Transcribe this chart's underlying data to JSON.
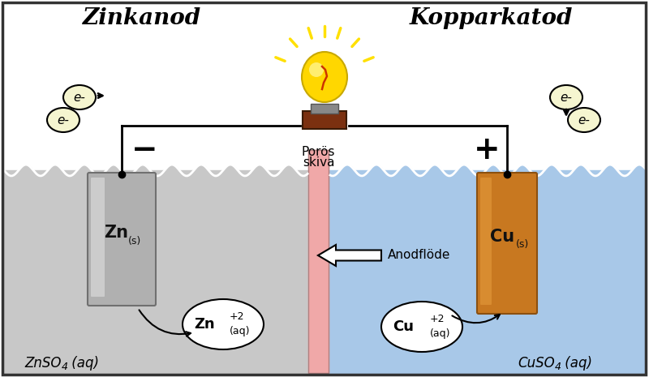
{
  "left_label": "Zinkanod",
  "right_label": "Kopparkatod",
  "left_solution_main": "ZnSO",
  "left_solution_sub": "4",
  "left_solution_end": " (aq)",
  "right_solution_main": "CuSO",
  "right_solution_sub": "4",
  "right_solution_end": " (aq)",
  "membrane_label_line1": "Porös",
  "membrane_label_line2": "skiva",
  "flow_label": "Anodflöde",
  "minus_sign": "−",
  "plus_sign": "+",
  "bg_color": "#ffffff",
  "left_bg": "#c8c8c8",
  "right_bg": "#a8c8e8",
  "membrane_color": "#f0a8a8",
  "left_electrode_color_top": "#c0c0c0",
  "left_electrode_color": "#909090",
  "right_electrode_color": "#c87820",
  "wire_color": "#000000",
  "bulb_base_color": "#7B3010",
  "bulb_glass_color": "#FFD700",
  "bulb_highlight_color": "#FFF8A0",
  "electron_circle_color": "#f5f5d0",
  "ion_circle_color": "#ffffff",
  "wave_color": "#ffffff",
  "border_color": "#333333",
  "label_fontsize": 20,
  "text_fontsize": 12,
  "ion_fontsize": 13,
  "wire_lw": 2.0
}
